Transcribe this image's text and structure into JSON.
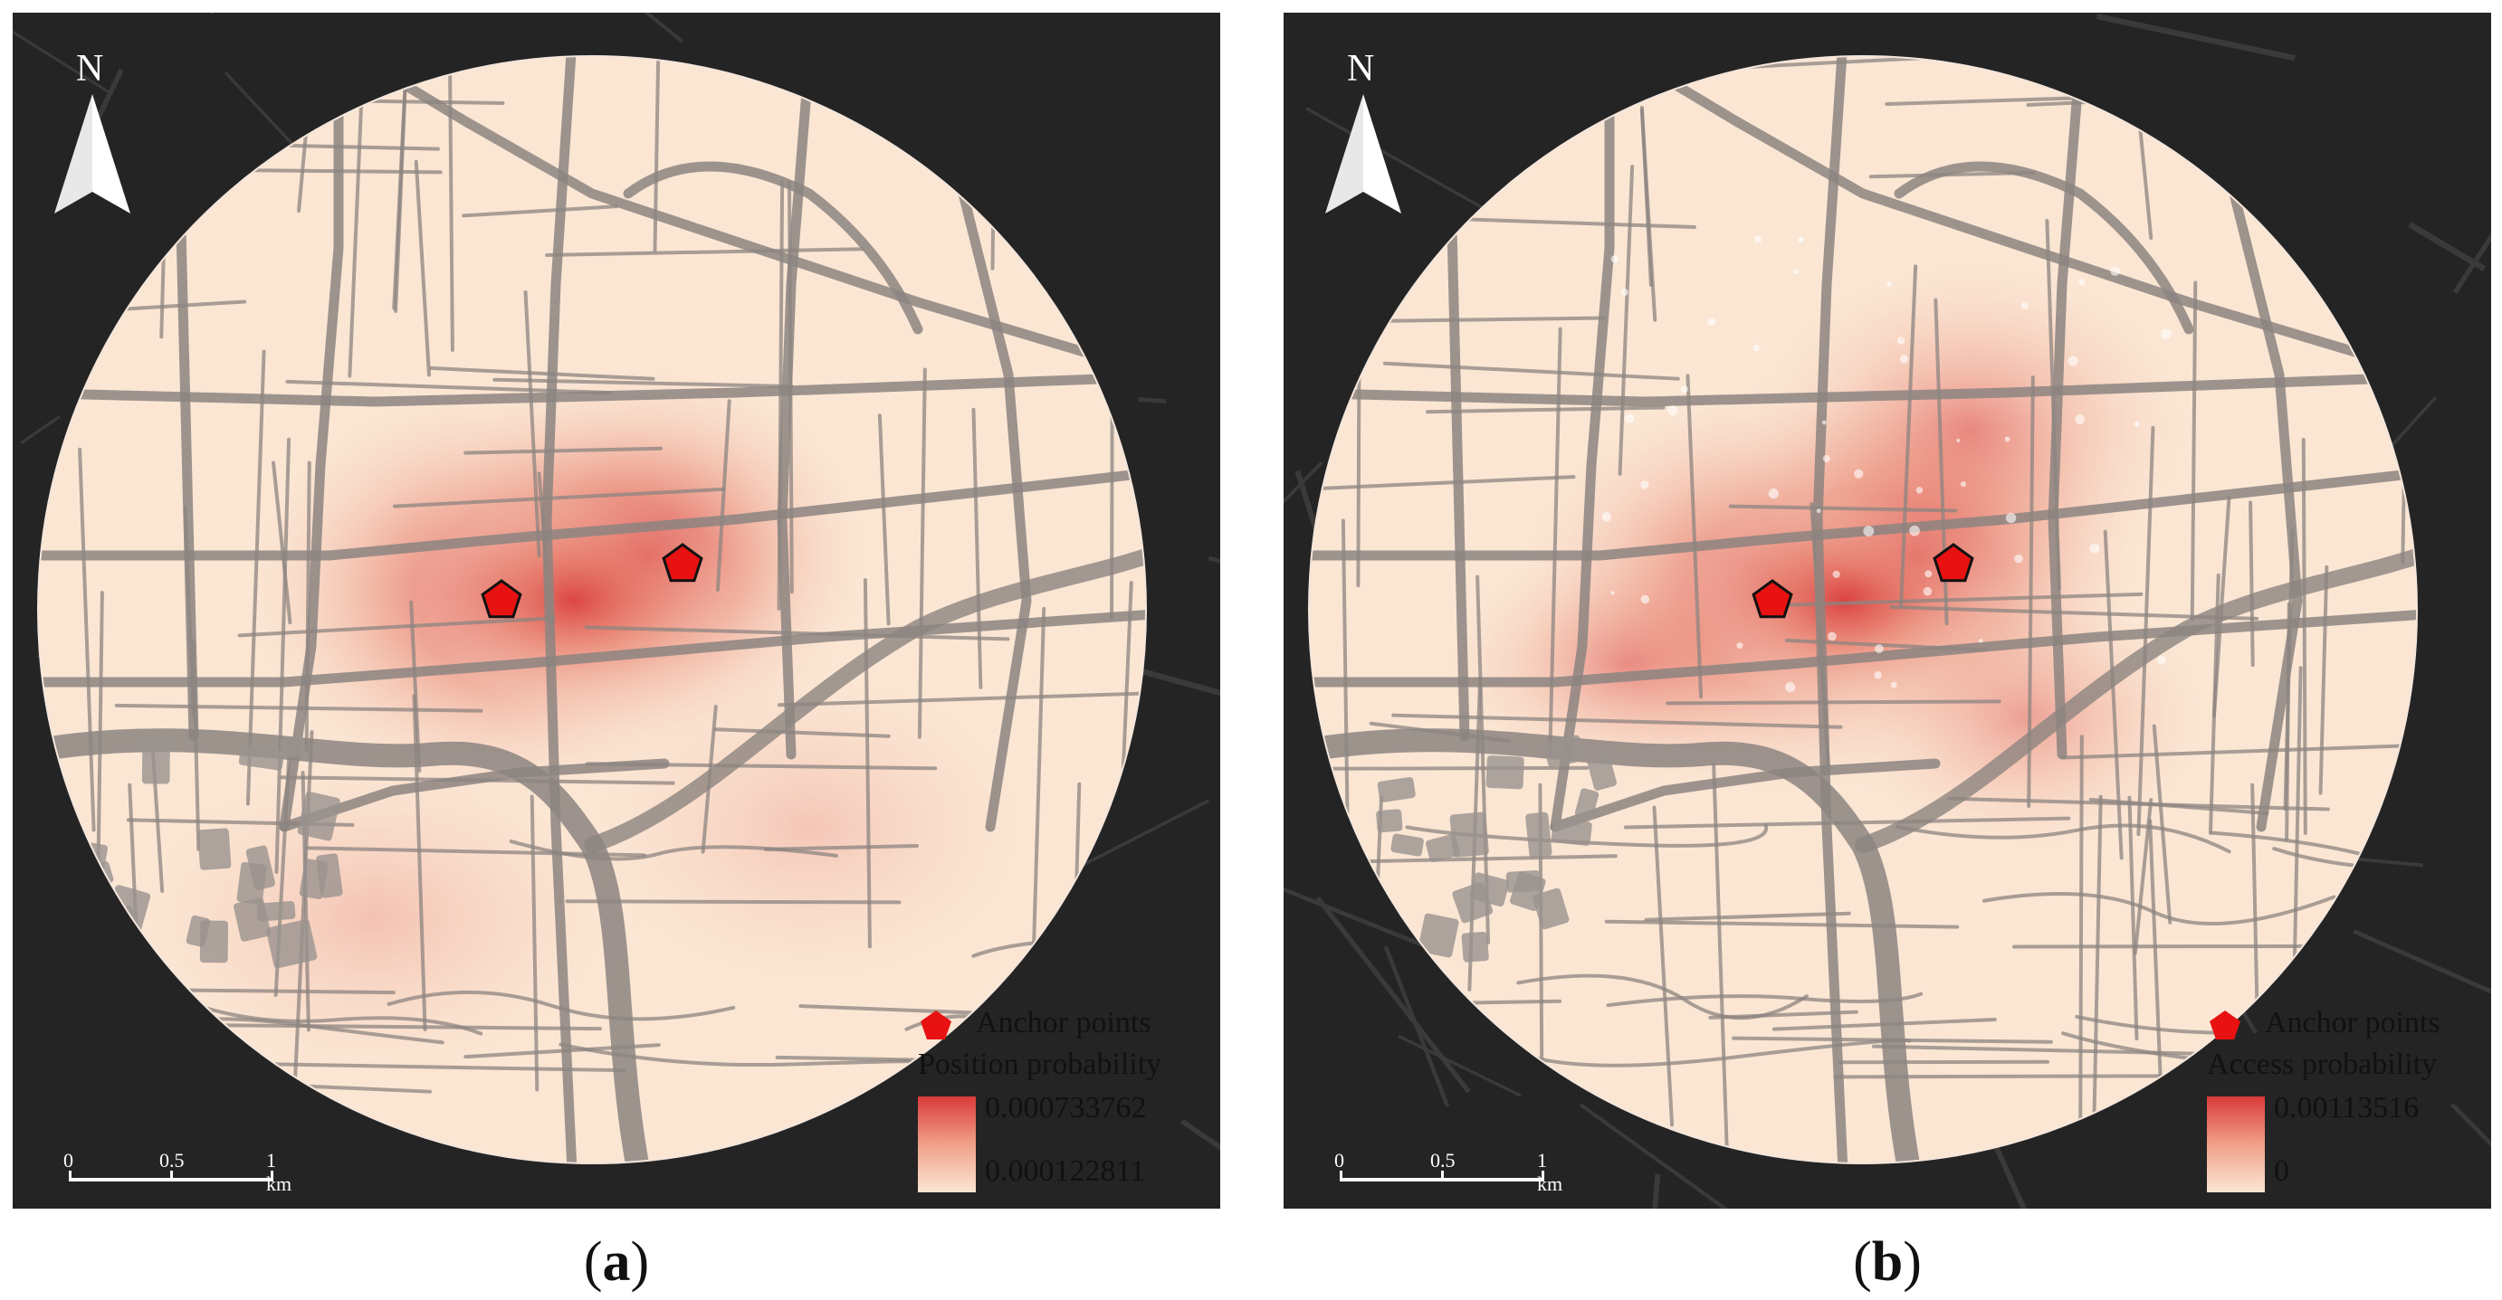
{
  "panels": [
    {
      "id": "a",
      "caption_label": "a",
      "north_label": "N",
      "legend": {
        "anchor_label": "Anchor points",
        "title": "Position probability",
        "max_value": "0.000733762",
        "min_value": "0.000122811"
      },
      "scalebar": {
        "labels": [
          "0",
          "0.5",
          "1 km"
        ]
      }
    },
    {
      "id": "b",
      "caption_label": "b",
      "north_label": "N",
      "legend": {
        "anchor_label": "Anchor points",
        "title": "Access probability",
        "max_value": "0.00113516",
        "min_value": "0"
      },
      "scalebar": {
        "labels": [
          "0",
          "0.5",
          "1 km"
        ]
      }
    }
  ],
  "colors": {
    "background": "#242424",
    "road": "#8c8480",
    "road_outside": "#3a3a3a",
    "heat_high": "#d93a3a",
    "heat_low": "#fbe6d4",
    "anchor": "#e81212"
  }
}
